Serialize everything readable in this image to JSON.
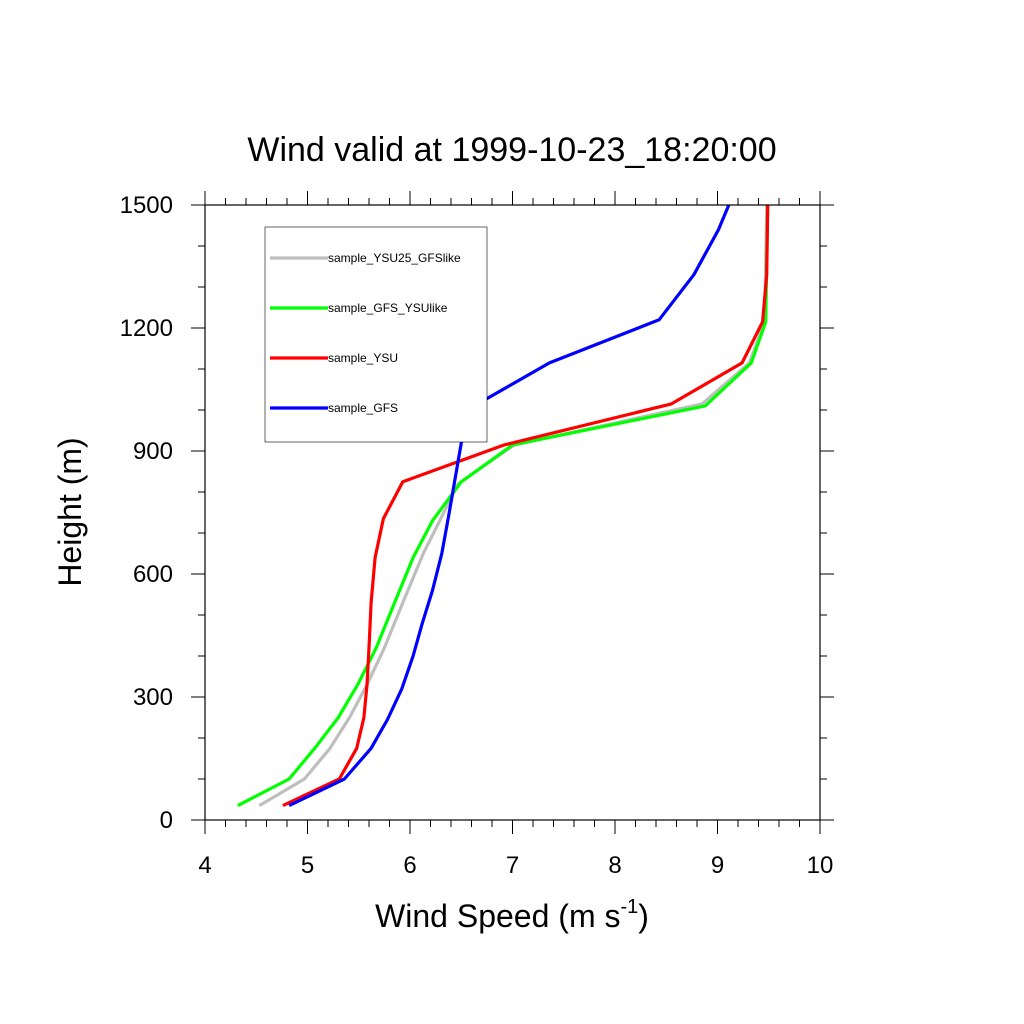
{
  "chart_data": {
    "type": "line",
    "title": "Wind valid at 1999-10-23_18:20:00",
    "xlabel": "Wind Speed (m s",
    "xlabel_superscript": "-1",
    "xlabel_suffix": ")",
    "ylabel": "Height (m)",
    "xlim": [
      4,
      10
    ],
    "ylim": [
      0,
      1500
    ],
    "xticks": [
      4,
      5,
      6,
      7,
      8,
      9,
      10
    ],
    "yticks": [
      0,
      300,
      600,
      900,
      1200,
      1500
    ],
    "grid": false,
    "legend": "top-left",
    "series": [
      {
        "name": "sample_YSU25_GFSlike",
        "color": "#bebebe",
        "x": [
          4.53,
          4.97,
          5.22,
          5.41,
          5.58,
          5.75,
          5.93,
          6.13,
          6.47,
          7.02,
          8.85,
          9.31,
          9.46,
          9.48
        ],
        "y": [
          35,
          100,
          175,
          250,
          330,
          420,
          530,
          650,
          820,
          915,
          1015,
          1115,
          1215,
          1500
        ]
      },
      {
        "name": "sample_GFS_YSUlike",
        "color": "#00ff00",
        "x": [
          4.32,
          4.82,
          5.07,
          5.3,
          5.49,
          5.67,
          5.85,
          6.03,
          6.22,
          6.5,
          7.0,
          8.88,
          9.33,
          9.47,
          9.49
        ],
        "y": [
          35,
          100,
          175,
          250,
          330,
          420,
          530,
          640,
          730,
          825,
          915,
          1010,
          1115,
          1215,
          1500
        ]
      },
      {
        "name": "sample_YSU",
        "color": "#ff0000",
        "x": [
          4.76,
          5.31,
          5.48,
          5.55,
          5.58,
          5.6,
          5.62,
          5.66,
          5.74,
          5.93,
          6.92,
          8.55,
          9.24,
          9.44,
          9.48,
          9.49
        ],
        "y": [
          35,
          100,
          175,
          250,
          330,
          420,
          530,
          640,
          735,
          825,
          915,
          1015,
          1115,
          1215,
          1330,
          1500
        ]
      },
      {
        "name": "sample_GFS",
        "color": "#0000ff",
        "x": [
          4.82,
          5.36,
          5.62,
          5.78,
          5.92,
          6.03,
          6.12,
          6.22,
          6.31,
          6.38,
          6.5,
          6.66,
          7.36,
          8.43,
          8.77,
          9.01,
          9.11
        ],
        "y": [
          35,
          100,
          175,
          245,
          320,
          400,
          480,
          560,
          650,
          745,
          920,
          1015,
          1115,
          1220,
          1330,
          1440,
          1500
        ]
      }
    ]
  }
}
